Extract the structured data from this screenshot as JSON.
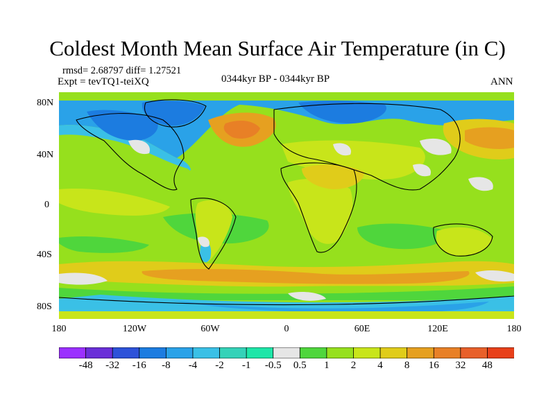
{
  "title": "Coldest Month Mean Surface Air Temperature (in C)",
  "stats": "rmsd= 2.68797 diff= 1.27521",
  "expt": "Expt = tevTQ1-teiXQ",
  "period": "0344kyr BP - 0344kyr BP",
  "season": "ANN",
  "lat_labels": [
    "80N",
    "40N",
    "0",
    "40S",
    "80S"
  ],
  "lon_labels": [
    "180",
    "120W",
    "60W",
    "0",
    "60E",
    "120E",
    "180"
  ],
  "colorbar": {
    "colors": [
      "#9b30ff",
      "#6a2fd8",
      "#2d52d9",
      "#1c7ce0",
      "#2aa2e8",
      "#3ac0e6",
      "#34d2b8",
      "#1ee6a8",
      "#e6e6e6",
      "#4fd63c",
      "#96e01d",
      "#c8e51a",
      "#e0cc1a",
      "#e6a020",
      "#e88026",
      "#e8602a",
      "#e8401a"
    ],
    "labels": [
      "-48",
      "-32",
      "-16",
      "-8",
      "-4",
      "-2",
      "-1",
      "-0.5",
      "0.5",
      "1",
      "2",
      "4",
      "8",
      "16",
      "32",
      "48"
    ]
  },
  "map": {
    "base_color": "#96e01d",
    "land_color": "#c8e51a"
  }
}
